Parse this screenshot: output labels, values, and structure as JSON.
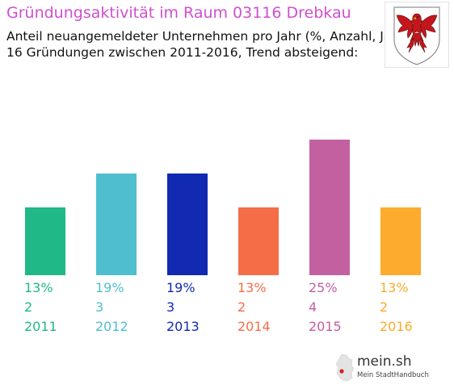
{
  "header": {
    "title": "Gründungsaktivität im Raum 03116 Drebkau",
    "subtitle_line1": "Anteil neuangemeldeter Unternehmen pro Jahr (%, Anzahl, Jahr)",
    "subtitle_line2": "16 Gründungen zwischen 2011-2016, Trend absteigend:"
  },
  "crest": {
    "icon": "brandenburg-eagle-crest-icon",
    "colors": {
      "eagle": "#c4161c",
      "beak": "#d9a400"
    }
  },
  "brand": {
    "icon": "germany-map-icon",
    "name": "mein.sh",
    "tagline": "Mein StadtHandbuch"
  },
  "chart_data": {
    "type": "bar",
    "categories": [
      "2011",
      "2012",
      "2013",
      "2014",
      "2015",
      "2016"
    ],
    "values": [
      2,
      3,
      3,
      2,
      4,
      2
    ],
    "percents": [
      "13%",
      "19%",
      "19%",
      "13%",
      "25%",
      "13%"
    ],
    "counts": [
      "2",
      "3",
      "3",
      "2",
      "4",
      "2"
    ],
    "colors": [
      "#20b887",
      "#4fbfcf",
      "#1229b2",
      "#f56d47",
      "#c360a0",
      "#fcab2d"
    ],
    "ylim": [
      0,
      4
    ],
    "grid": false,
    "legend": "none"
  }
}
